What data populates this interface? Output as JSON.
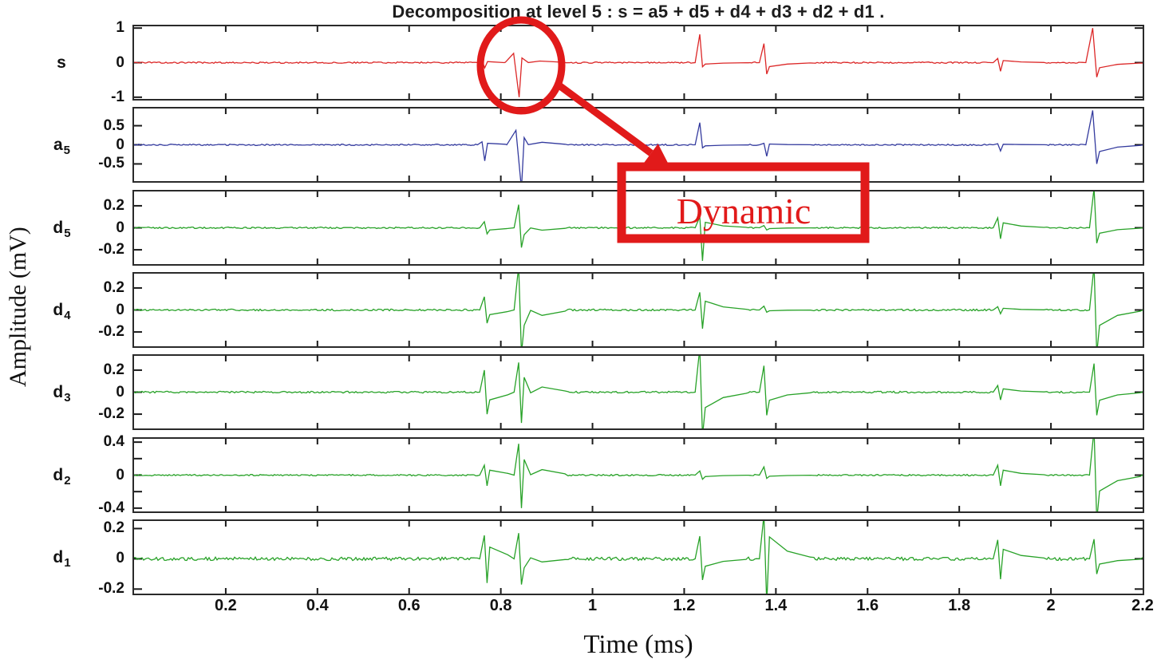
{
  "title": "Decomposition at level 5 : s = a5 + d5 + d4 + d3 + d2 + d1 .",
  "axis": {
    "xlabel": "Time (ms)",
    "ylabel": "Amplitude (mV)"
  },
  "annotation": {
    "label": "Dynamic",
    "color": "#e11a1a"
  },
  "colors": {
    "axis_line": "#2a2a2a",
    "tick_line": "#1a1a1a",
    "signal_s": "#dc2727",
    "signal_a5": "#333a9e",
    "signal_d": "#28a228"
  },
  "chart_data": {
    "type": "line",
    "title": "Decomposition at level 5 : s = a5 + d5 + d4 + d3 + d2 + d1 .",
    "xlabel": "Time (ms)",
    "ylabel": "Amplitude (mV)",
    "x_range": [
      0,
      2.2
    ],
    "grid": false,
    "legend": "none",
    "x_ticks": [
      {
        "v": 0.2,
        "label": "0.2"
      },
      {
        "v": 0.4,
        "label": "0.4"
      },
      {
        "v": 0.6,
        "label": "0.6"
      },
      {
        "v": 0.8,
        "label": "0.8"
      },
      {
        "v": 1.0,
        "label": "1"
      },
      {
        "v": 1.2,
        "label": "1.2"
      },
      {
        "v": 1.4,
        "label": "1.4"
      },
      {
        "v": 1.6,
        "label": "1.6"
      },
      {
        "v": 1.8,
        "label": "1.8"
      },
      {
        "v": 2.0,
        "label": "2"
      },
      {
        "v": 2.2,
        "label": "2.2"
      }
    ],
    "spike_times_ms": [
      0.77,
      0.84,
      1.24,
      1.38,
      1.89,
      2.1
    ],
    "panels": [
      {
        "label": "s",
        "sub": "",
        "color": "#dc2727",
        "ylim": [
          -1.05,
          1.05
        ],
        "noise": 0.02,
        "yticks": [
          {
            "v": 1,
            "label": "1"
          },
          {
            "v": 0,
            "label": "0"
          },
          {
            "v": -1,
            "label": "-1"
          }
        ],
        "spikes": [
          {
            "t": 0.765,
            "up": 0.06,
            "down": -0.15
          },
          {
            "t": 0.84,
            "up": 0.27,
            "down": -1.0,
            "w": 2
          },
          {
            "t": 1.24,
            "up": 0.82,
            "down": -0.12
          },
          {
            "t": 1.38,
            "up": 0.55,
            "down": -0.33
          },
          {
            "t": 1.89,
            "up": 0.12,
            "down": -0.25
          },
          {
            "t": 2.1,
            "up": 1.0,
            "down": -0.42,
            "w": 1.5
          }
        ]
      },
      {
        "label": "a",
        "sub": "5",
        "color": "#333a9e",
        "ylim": [
          -0.95,
          0.95
        ],
        "noise": 0.018,
        "yticks": [
          {
            "v": 0.5,
            "label": "0.5"
          },
          {
            "v": 0,
            "label": "0"
          },
          {
            "v": -0.5,
            "label": "-0.5"
          }
        ],
        "spikes": [
          {
            "t": 0.765,
            "up": 0.08,
            "down": -0.42
          },
          {
            "t": 0.845,
            "up": 0.38,
            "down": -1.15,
            "w": 2
          },
          {
            "t": 1.24,
            "up": 0.58,
            "down": -0.08
          },
          {
            "t": 1.38,
            "up": 0.04,
            "down": -0.3
          },
          {
            "t": 1.89,
            "up": 0.03,
            "down": -0.16
          },
          {
            "t": 2.1,
            "up": 0.9,
            "down": -0.5,
            "w": 1.5
          }
        ]
      },
      {
        "label": "d",
        "sub": "5",
        "color": "#28a228",
        "ylim": [
          -0.33,
          0.33
        ],
        "noise": 0.007,
        "yticks": [
          {
            "v": 0.2,
            "label": "0.2"
          },
          {
            "v": 0,
            "label": "0"
          },
          {
            "v": -0.2,
            "label": "-0.2"
          }
        ],
        "spikes": [
          {
            "t": 0.77,
            "up": 0.055,
            "down": -0.055
          },
          {
            "t": 0.845,
            "up": 0.21,
            "down": -0.18
          },
          {
            "t": 1.24,
            "up": 0.1,
            "down": -0.3
          },
          {
            "t": 1.38,
            "up": 0.02,
            "down": -0.02
          },
          {
            "t": 1.89,
            "up": 0.09,
            "down": -0.1
          },
          {
            "t": 2.1,
            "up": 0.36,
            "down": -0.14
          }
        ]
      },
      {
        "label": "d",
        "sub": "4",
        "color": "#28a228",
        "ylim": [
          -0.33,
          0.33
        ],
        "noise": 0.008,
        "yticks": [
          {
            "v": 0.2,
            "label": "0.2"
          },
          {
            "v": 0,
            "label": "0"
          },
          {
            "v": -0.2,
            "label": "-0.2"
          }
        ],
        "spikes": [
          {
            "t": 0.77,
            "up": 0.12,
            "down": -0.12
          },
          {
            "t": 0.845,
            "up": 0.4,
            "down": -0.4
          },
          {
            "t": 1.24,
            "up": 0.16,
            "down": -0.17
          },
          {
            "t": 1.38,
            "up": 0.035,
            "down": -0.02
          },
          {
            "t": 1.89,
            "up": 0.03,
            "down": -0.035
          },
          {
            "t": 2.1,
            "up": 0.4,
            "down": -0.4
          }
        ]
      },
      {
        "label": "d",
        "sub": "3",
        "color": "#28a228",
        "ylim": [
          -0.33,
          0.33
        ],
        "noise": 0.008,
        "yticks": [
          {
            "v": 0.2,
            "label": "0.2"
          },
          {
            "v": 0,
            "label": "0"
          },
          {
            "v": -0.2,
            "label": "-0.2"
          }
        ],
        "spikes": [
          {
            "t": 0.77,
            "up": 0.2,
            "down": -0.2
          },
          {
            "t": 0.845,
            "up": 0.27,
            "down": -0.28
          },
          {
            "t": 1.24,
            "up": 0.4,
            "down": -0.4
          },
          {
            "t": 1.38,
            "up": 0.24,
            "down": -0.21
          },
          {
            "t": 1.89,
            "up": 0.06,
            "down": -0.07
          },
          {
            "t": 2.1,
            "up": 0.26,
            "down": -0.21
          }
        ]
      },
      {
        "label": "d",
        "sub": "2",
        "color": "#28a228",
        "ylim": [
          -0.44,
          0.44
        ],
        "noise": 0.009,
        "yticks": [
          {
            "v": 0.4,
            "label": "0.4"
          },
          {
            "v": 0.2,
            "label": ""
          },
          {
            "v": 0,
            "label": "0"
          },
          {
            "v": -0.2,
            "label": ""
          },
          {
            "v": -0.4,
            "label": "-0.4"
          }
        ],
        "spikes": [
          {
            "t": 0.77,
            "up": 0.12,
            "down": -0.13
          },
          {
            "t": 0.845,
            "up": 0.38,
            "down": -0.4
          },
          {
            "t": 1.24,
            "up": 0.05,
            "down": -0.05
          },
          {
            "t": 1.38,
            "up": 0.1,
            "down": -0.04
          },
          {
            "t": 1.89,
            "up": 0.12,
            "down": -0.13
          },
          {
            "t": 2.1,
            "up": 0.55,
            "down": -0.55
          }
        ]
      },
      {
        "label": "d",
        "sub": "1",
        "color": "#28a228",
        "ylim": [
          -0.23,
          0.25
        ],
        "noise": 0.011,
        "yticks": [
          {
            "v": 0.2,
            "label": "0.2"
          },
          {
            "v": 0,
            "label": "0"
          },
          {
            "v": -0.2,
            "label": "-0.2"
          }
        ],
        "spikes": [
          {
            "t": 0.77,
            "up": 0.155,
            "down": -0.16
          },
          {
            "t": 0.845,
            "up": 0.17,
            "down": -0.17
          },
          {
            "t": 1.24,
            "up": 0.15,
            "down": -0.14
          },
          {
            "t": 1.38,
            "up": 0.29,
            "down": -0.3
          },
          {
            "t": 1.89,
            "up": 0.125,
            "down": -0.135
          },
          {
            "t": 2.1,
            "up": 0.13,
            "down": -0.1
          }
        ]
      }
    ]
  }
}
